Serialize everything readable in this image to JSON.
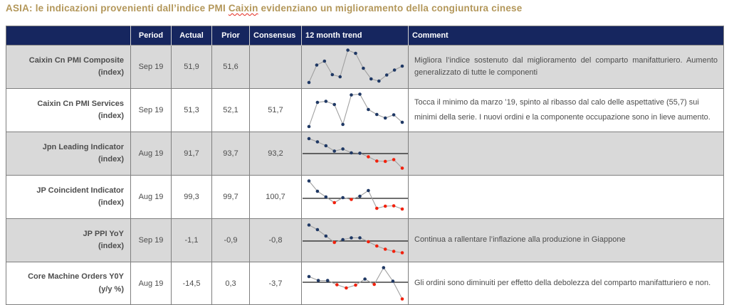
{
  "title": {
    "prefix": "ASIA: le indicazioni provenienti dall’indice PMI ",
    "misspelled_word": "Caixin",
    "suffix": " evidenziano un miglioramento della congiuntura cinese"
  },
  "colors": {
    "title_gold": "#B3975A",
    "header_navy": "#16265F",
    "row_shaded": "#D9D9D9",
    "row_plain": "#FFFFFF",
    "grid_border": "#7F7F7F",
    "dot_navy": "#1F3864",
    "dot_red": "#F2210D",
    "spark_line": "#A0A0A0",
    "baseline_black": "#1a1a1a",
    "misspell_wave_red": "#E5271B"
  },
  "table": {
    "headers": {
      "label": "",
      "period": "Period",
      "actual": "Actual",
      "prior": "Prior",
      "consensus": "Consensus",
      "trend": "12 month trend",
      "comment": "Comment"
    },
    "rows": [
      {
        "name": "Caixin Cn PMI Composite",
        "unit": "(index)",
        "period": "Sep 19",
        "actual": "51,9",
        "prior": "51,6",
        "consensus": "",
        "comment": "Migliora l’indice sostenuto dal miglioramento del comparto manifatturiero. Aumento generalizzato di tutte le componenti"
      },
      {
        "name": "Caixin Cn PMI Services",
        "unit": "(index)",
        "period": "Sep 19",
        "actual": "51,3",
        "prior": "52,1",
        "consensus": "51,7",
        "comment": "Tocca il minimo da marzo ’19, spinto al ribasso dal calo delle aspettative (55,7) sui minimi della serie. I nuovi ordini e la componente occupazione sono in lieve aumento."
      },
      {
        "name": "Jpn Leading Indicator",
        "unit": "(index)",
        "period": "Aug 19",
        "actual": "91,7",
        "prior": "93,7",
        "consensus": "93,2",
        "comment": ""
      },
      {
        "name": "JP Coincident Indicator",
        "unit": "(index)",
        "period": "Aug 19",
        "actual": "99,3",
        "prior": "99,7",
        "consensus": "100,7",
        "comment": ""
      },
      {
        "name": "JP PPI YoY",
        "unit": "(index)",
        "period": "Sep 19",
        "actual": "-1,1",
        "prior": "-0,9",
        "consensus": "-0,8",
        "comment": "Continua a rallentare l’inflazione alla produzione in Giappone"
      },
      {
        "name": "Core Machine Orders Y0Y",
        "unit": "(y/y %)",
        "period": "Aug 19",
        "actual": "-14,5",
        "prior": "0,3",
        "consensus": "-3,7",
        "comment": "Gli ordini sono diminuiti per effetto della debolezza del comparto manifatturiero e non."
      }
    ]
  },
  "chart_data": [
    {
      "type": "line",
      "row": "Caixin Cn PMI Composite",
      "scale": "relative-height-0-100",
      "values": [
        6,
        55,
        66,
        28,
        22,
        97,
        88,
        46,
        16,
        10,
        27,
        41,
        52
      ],
      "point_colors": [
        "navy",
        "navy",
        "navy",
        "navy",
        "navy",
        "navy",
        "navy",
        "navy",
        "navy",
        "navy",
        "navy",
        "navy",
        "navy"
      ],
      "baseline": null
    },
    {
      "type": "line",
      "row": "Caixin Cn PMI Services",
      "scale": "relative-height-0-100",
      "values": [
        4,
        72,
        75,
        66,
        10,
        93,
        95,
        52,
        38,
        28,
        37,
        16
      ],
      "point_colors": [
        "navy",
        "navy",
        "navy",
        "navy",
        "navy",
        "navy",
        "navy",
        "navy",
        "navy",
        "navy",
        "navy",
        "navy"
      ],
      "baseline": null
    },
    {
      "type": "line",
      "row": "Jpn Leading Indicator",
      "scale": "relative-height-0-100",
      "values": [
        92,
        83,
        72,
        57,
        63,
        52,
        51,
        41,
        29,
        28,
        33,
        9
      ],
      "point_colors": [
        "navy",
        "navy",
        "navy",
        "navy",
        "navy",
        "navy",
        "navy",
        "red",
        "red",
        "red",
        "red",
        "red"
      ],
      "baseline": 50
    },
    {
      "type": "line",
      "row": "JP Coincident Indicator",
      "scale": "relative-height-0-100",
      "values": [
        95,
        66,
        50,
        34,
        48,
        43,
        52,
        68,
        18,
        24,
        25,
        16
      ],
      "point_colors": [
        "navy",
        "navy",
        "navy",
        "red",
        "navy",
        "red",
        "navy",
        "navy",
        "red",
        "red",
        "red",
        "red"
      ],
      "baseline": 46
    },
    {
      "type": "line",
      "row": "JP PPI YoY",
      "scale": "relative-height-0-100",
      "values": [
        93,
        80,
        62,
        44,
        52,
        57,
        57,
        46,
        34,
        25,
        19,
        15
      ],
      "point_colors": [
        "navy",
        "navy",
        "navy",
        "red",
        "navy",
        "navy",
        "navy",
        "red",
        "red",
        "red",
        "red",
        "red"
      ],
      "baseline": 48
    },
    {
      "type": "line",
      "row": "Core Machine Orders Y0Y",
      "scale": "relative-height-0-100",
      "values": [
        70,
        59,
        59,
        47,
        38,
        46,
        63,
        48,
        95,
        57,
        7
      ],
      "point_colors": [
        "navy",
        "navy",
        "navy",
        "red",
        "red",
        "red",
        "navy",
        "red",
        "navy",
        "navy",
        "red"
      ],
      "baseline": 54
    }
  ]
}
